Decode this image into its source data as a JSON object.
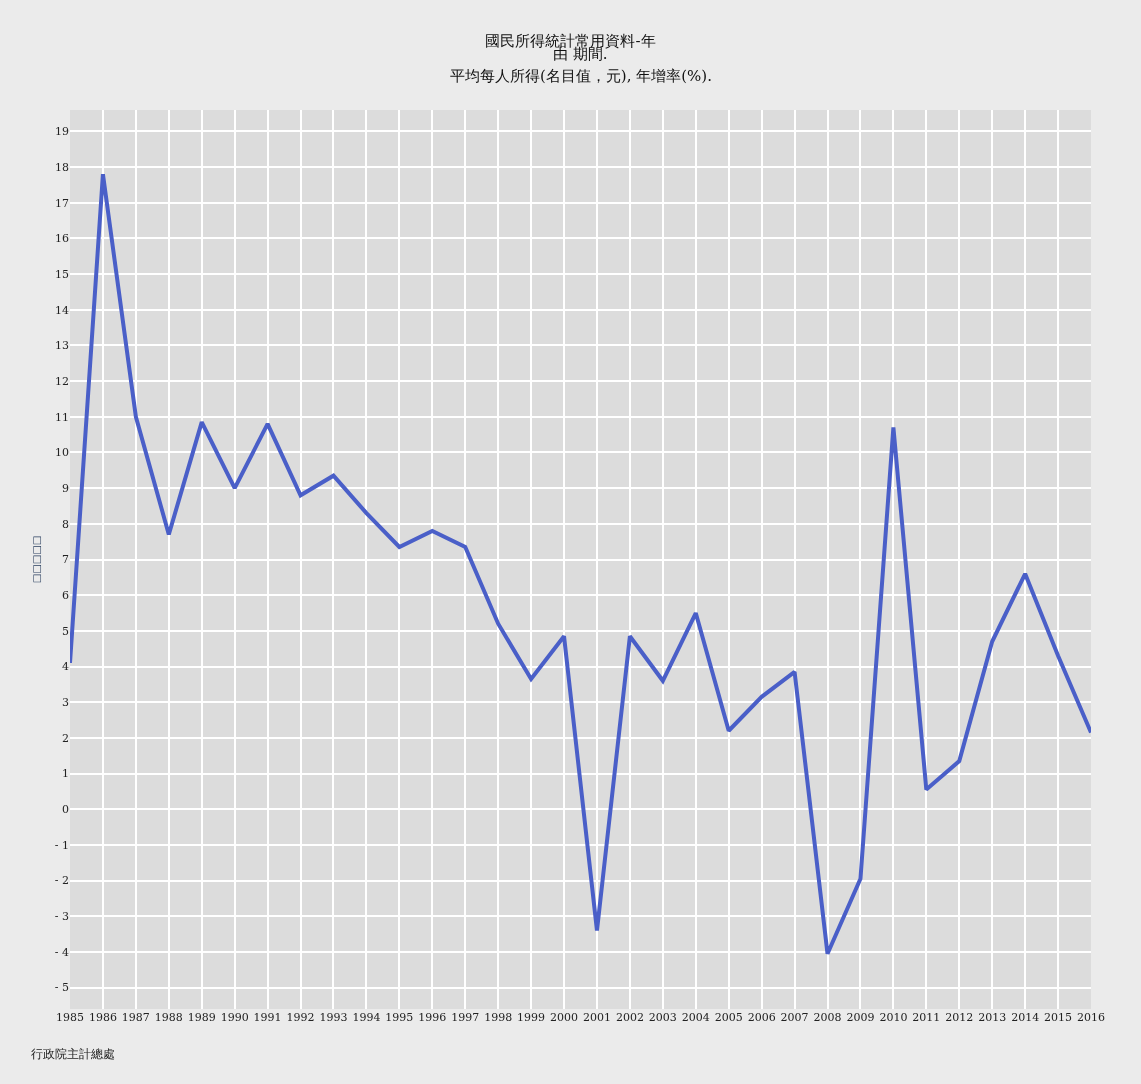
{
  "chart_data": {
    "type": "line",
    "title": "國民所得統計常用資料-年",
    "subtitle": "由 期間.",
    "ylabel": "□□□□□",
    "x": [
      1985,
      1986,
      1987,
      1988,
      1989,
      1990,
      1991,
      1992,
      1993,
      1994,
      1995,
      1996,
      1997,
      1998,
      1999,
      2000,
      2001,
      2002,
      2003,
      2004,
      2005,
      2006,
      2007,
      2008,
      2009,
      2010,
      2011,
      2012,
      2013,
      2014,
      2015,
      2016
    ],
    "series": [
      {
        "color": "#4a5fc8",
        "values": [
          4.1,
          17.8,
          11.0,
          7.7,
          10.85,
          9.0,
          10.8,
          8.8,
          9.35,
          8.3,
          7.35,
          7.8,
          7.35,
          5.2,
          3.65,
          4.85,
          -3.4,
          4.85,
          3.6,
          5.5,
          2.2,
          3.15,
          3.85,
          -4.05,
          -1.95,
          10.7,
          0.55,
          1.35,
          4.7,
          6.6,
          4.3,
          2.15
        ]
      }
    ],
    "xlim": [
      1985,
      2016
    ],
    "xticks": [
      1985,
      1986,
      1987,
      1988,
      1989,
      1990,
      1991,
      1992,
      1993,
      1994,
      1995,
      1996,
      1997,
      1998,
      1999,
      2000,
      2001,
      2002,
      2003,
      2004,
      2005,
      2006,
      2007,
      2008,
      2009,
      2010,
      2011,
      2012,
      2013,
      2014,
      2015,
      2016
    ],
    "ylim": [
      -5.6,
      19.6
    ],
    "yticks": [
      {
        "value": -5,
        "label": "- 5"
      },
      {
        "value": -4,
        "label": "- 4"
      },
      {
        "value": -3,
        "label": "- 3"
      },
      {
        "value": -2,
        "label": "- 2"
      },
      {
        "value": -1,
        "label": "- 1"
      },
      0,
      1,
      2,
      3,
      4,
      5,
      6,
      7,
      8,
      9,
      10,
      11,
      12,
      13,
      14,
      15,
      16,
      17,
      18,
      19
    ],
    "grid": true,
    "legend": false,
    "marker": "none",
    "line_style": "solid",
    "annotations": [
      "平均每人所得(名目值，元), 年增率(%).",
      "行政院主計總處"
    ]
  }
}
